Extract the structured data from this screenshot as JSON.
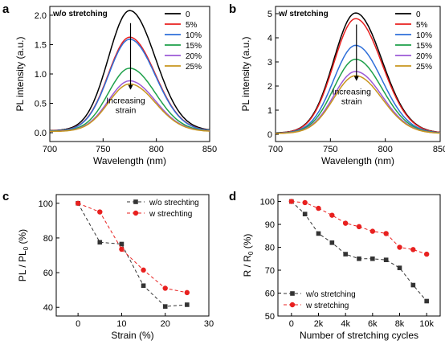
{
  "panels": {
    "a": "a",
    "b": "b",
    "c": "c",
    "d": "d"
  },
  "chart_data": [
    {
      "type": "line",
      "panel": "a",
      "title": "w/o stretching",
      "xlabel": "Wavelength (nm)",
      "ylabel": "PL intensity (a.u.)",
      "xlim": [
        700,
        850
      ],
      "ylim": [
        -0.15,
        2.15
      ],
      "xticks": [
        700,
        750,
        800,
        850
      ],
      "yticks": [
        0.0,
        0.5,
        1.0,
        1.5,
        2.0
      ],
      "ytick_labels": [
        "0.0",
        "0.5",
        "1.0",
        "1.5",
        "2.0"
      ],
      "legend": "top-right",
      "annotation": [
        "Increasing",
        "strain"
      ],
      "peak_wavelength": 775,
      "series": [
        {
          "name": "0",
          "color": "#000000",
          "peak": 2.03
        },
        {
          "name": "5%",
          "color": "#e8201f",
          "peak": 1.58
        },
        {
          "name": "10%",
          "color": "#2e6fd9",
          "peak": 1.55
        },
        {
          "name": "15%",
          "color": "#1ea04a",
          "peak": 1.06
        },
        {
          "name": "20%",
          "color": "#9b59d6",
          "peak": 0.85
        },
        {
          "name": "25%",
          "color": "#c8961e",
          "peak": 0.8
        }
      ]
    },
    {
      "type": "line",
      "panel": "b",
      "title": "w/ stretching",
      "xlabel": "Wavelength (nm)",
      "ylabel": "PL intensity (a.u.)",
      "xlim": [
        700,
        850
      ],
      "ylim": [
        -0.3,
        5.3
      ],
      "xticks": [
        700,
        750,
        800,
        850
      ],
      "yticks": [
        0,
        1,
        2,
        3,
        4,
        5
      ],
      "ytick_labels": [
        "0",
        "1",
        "2",
        "3",
        "4",
        "5"
      ],
      "legend": "top-right",
      "annotation": [
        "Increasing",
        "strain"
      ],
      "peak_wavelength": 773,
      "series": [
        {
          "name": "0",
          "color": "#000000",
          "peak": 4.95
        },
        {
          "name": "5%",
          "color": "#e8201f",
          "peak": 4.72
        },
        {
          "name": "10%",
          "color": "#2e6fd9",
          "peak": 3.62
        },
        {
          "name": "15%",
          "color": "#1ea04a",
          "peak": 3.05
        },
        {
          "name": "20%",
          "color": "#9b59d6",
          "peak": 2.55
        },
        {
          "name": "25%",
          "color": "#c8961e",
          "peak": 2.38
        }
      ]
    },
    {
      "type": "line",
      "panel": "c",
      "xlabel": "Strain (%)",
      "ylabel": "PL / PL0 (%)",
      "xlim": [
        -5,
        30
      ],
      "ylim": [
        35,
        105
      ],
      "xticks": [
        0,
        10,
        20,
        30
      ],
      "yticks": [
        40,
        60,
        80,
        100
      ],
      "legend": "top-right",
      "x": [
        0,
        5,
        10,
        15,
        20,
        25
      ],
      "series": [
        {
          "name": "w/o strechting",
          "color": "#333333",
          "marker": "square",
          "values": [
            100,
            77.5,
            76.5,
            52.5,
            40.5,
            41.5
          ]
        },
        {
          "name": "w strechting",
          "color": "#e8201f",
          "marker": "circle",
          "values": [
            100,
            95,
            73.5,
            61.5,
            51,
            48.5
          ]
        }
      ]
    },
    {
      "type": "line",
      "panel": "d",
      "xlabel": "Number of stretching cycles",
      "ylabel": "R / R0 (%)",
      "xlim": [
        -1000,
        11000
      ],
      "ylim": [
        50,
        103
      ],
      "xticks": [
        0,
        2000,
        4000,
        6000,
        8000,
        10000
      ],
      "xtick_labels": [
        "0",
        "2k",
        "4k",
        "6k",
        "8k",
        "10k"
      ],
      "yticks": [
        50,
        60,
        70,
        80,
        90,
        100
      ],
      "legend": "bottom-left",
      "x": [
        0,
        1000,
        2000,
        3000,
        4000,
        5000,
        6000,
        7000,
        8000,
        9000,
        10000
      ],
      "series": [
        {
          "name": "w/o stretching",
          "color": "#333333",
          "marker": "square",
          "values": [
            100,
            94.5,
            86,
            82,
            77,
            75,
            75,
            74.5,
            71,
            63.5,
            56.5
          ]
        },
        {
          "name": "w stretching",
          "color": "#e8201f",
          "marker": "circle",
          "values": [
            100,
            99.5,
            97,
            94,
            90.5,
            89,
            87,
            86,
            80,
            79,
            77
          ]
        }
      ]
    }
  ]
}
